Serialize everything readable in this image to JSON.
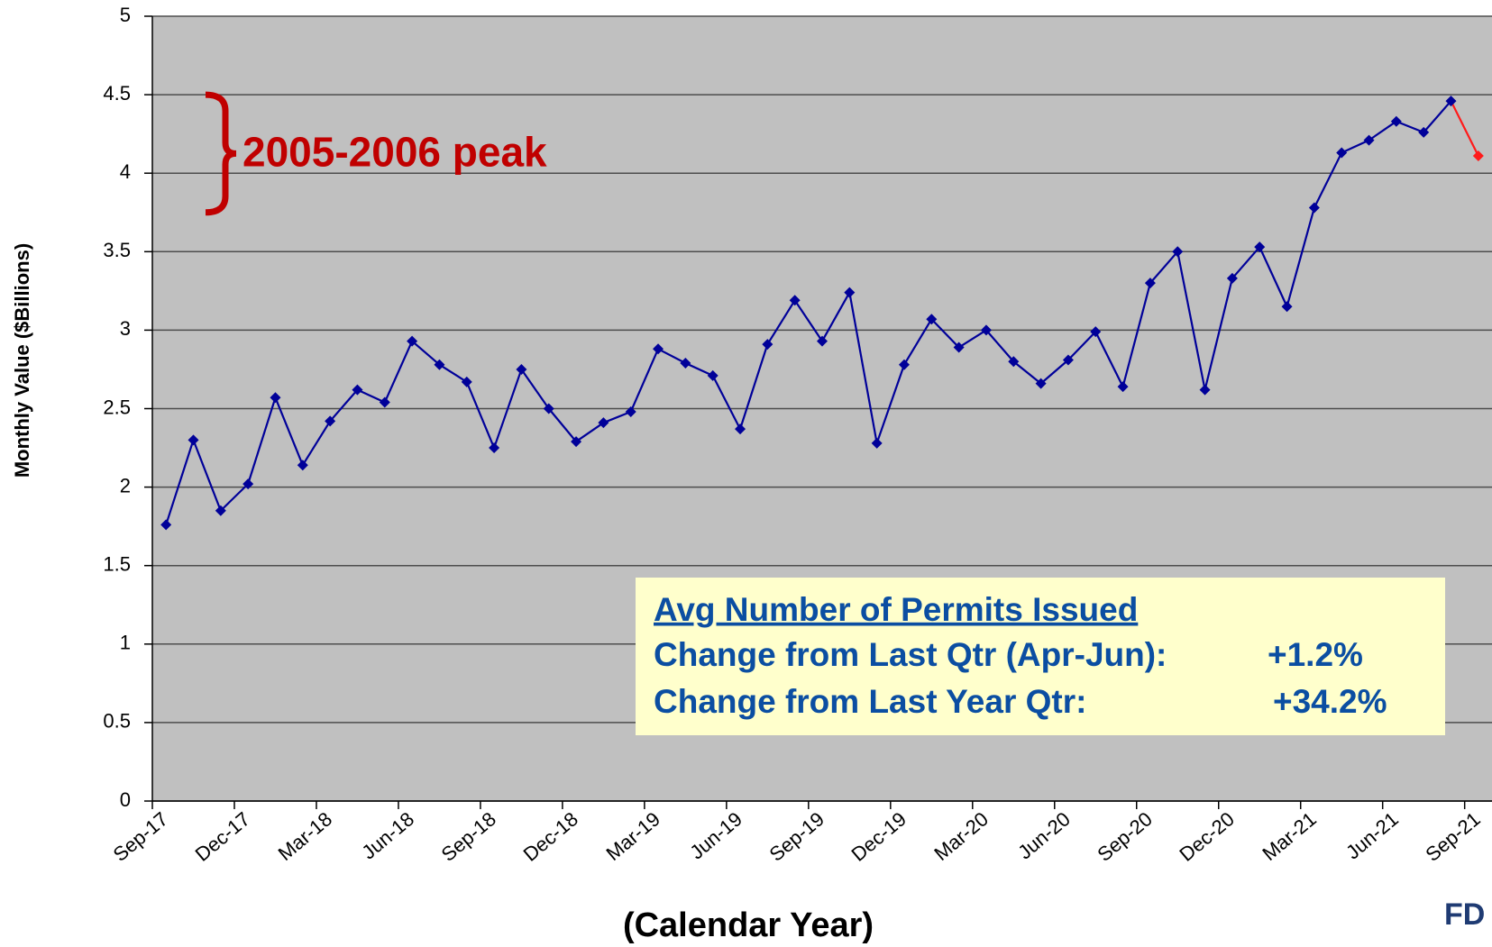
{
  "chart_data": {
    "type": "line",
    "y_axis_label": "Monthly Value ($Billions)",
    "x_axis_label": "(Calendar Year)",
    "categories": [
      "Sep-17",
      null,
      null,
      "Dec-17",
      null,
      null,
      "Mar-18",
      null,
      null,
      "Jun-18",
      null,
      null,
      "Sep-18",
      null,
      null,
      "Dec-18",
      null,
      null,
      "Mar-19",
      null,
      null,
      "Jun-19",
      null,
      null,
      "Sep-19",
      null,
      null,
      "Dec-19",
      null,
      null,
      "Mar-20",
      null,
      null,
      "Jun-20",
      null,
      null,
      "Sep-20",
      null,
      null,
      "Dec-20",
      null,
      null,
      "Mar-21",
      null,
      null,
      "Jun-21",
      null,
      null,
      "Sep-21"
    ],
    "values": [
      1.76,
      2.3,
      1.85,
      2.02,
      2.57,
      2.14,
      2.42,
      2.62,
      2.54,
      2.93,
      2.78,
      2.67,
      2.25,
      2.75,
      2.5,
      2.29,
      2.41,
      2.48,
      2.88,
      2.79,
      2.71,
      2.37,
      2.91,
      3.19,
      2.93,
      3.24,
      2.28,
      2.78,
      3.07,
      2.89,
      3.0,
      2.8,
      2.66,
      2.81,
      2.99,
      2.64,
      3.3,
      3.5,
      2.62,
      3.33,
      3.53,
      3.15,
      3.78,
      4.13,
      4.21,
      4.33,
      4.26,
      4.46,
      4.11
    ],
    "color": "#000099",
    "last_segment_color": "#ff1a1a",
    "ylim": [
      0,
      5
    ],
    "yticks": [
      0,
      0.5,
      1,
      1.5,
      2,
      2.5,
      3,
      3.5,
      4,
      4.5,
      5
    ],
    "grid": true,
    "peak_annotation": {
      "text": "2005-2006 peak",
      "range": [
        3.75,
        4.5
      ]
    },
    "info_box": {
      "title": "Avg Number of Permits Issued",
      "rows": [
        {
          "label": "Change from Last Qtr (Apr-Jun):",
          "value": "+1.2%"
        },
        {
          "label": "Change from Last Year Qtr:",
          "value": "+34.2%"
        }
      ]
    },
    "logo_text": "FD"
  }
}
